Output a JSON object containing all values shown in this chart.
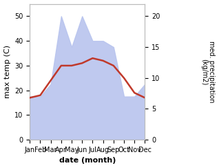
{
  "months": [
    "Jan",
    "Feb",
    "Mar",
    "Apr",
    "May",
    "Jun",
    "Jul",
    "Aug",
    "Sep",
    "Oct",
    "Nov",
    "Dec"
  ],
  "month_x": [
    1,
    2,
    3,
    4,
    5,
    6,
    7,
    8,
    9,
    10,
    11,
    12
  ],
  "temp_max": [
    17,
    18,
    24,
    30,
    30,
    31,
    33,
    32,
    30,
    25,
    19,
    17
  ],
  "precip": [
    7,
    7,
    9,
    20,
    15,
    20,
    16,
    16,
    15,
    7,
    7,
    9
  ],
  "temp_color": "#c0392b",
  "precip_color_fill": "#b8c4ee",
  "left_ylim": [
    0,
    55
  ],
  "right_ylim": [
    0,
    22
  ],
  "left_yticks": [
    0,
    10,
    20,
    30,
    40,
    50
  ],
  "right_yticks": [
    0,
    5,
    10,
    15,
    20
  ],
  "ylabel_left": "max temp (C)",
  "ylabel_right": "med. precipitation\n(kg/m2)",
  "xlabel": "date (month)",
  "bg_color": "#ffffff",
  "fig_width": 3.18,
  "fig_height": 2.43,
  "dpi": 100
}
